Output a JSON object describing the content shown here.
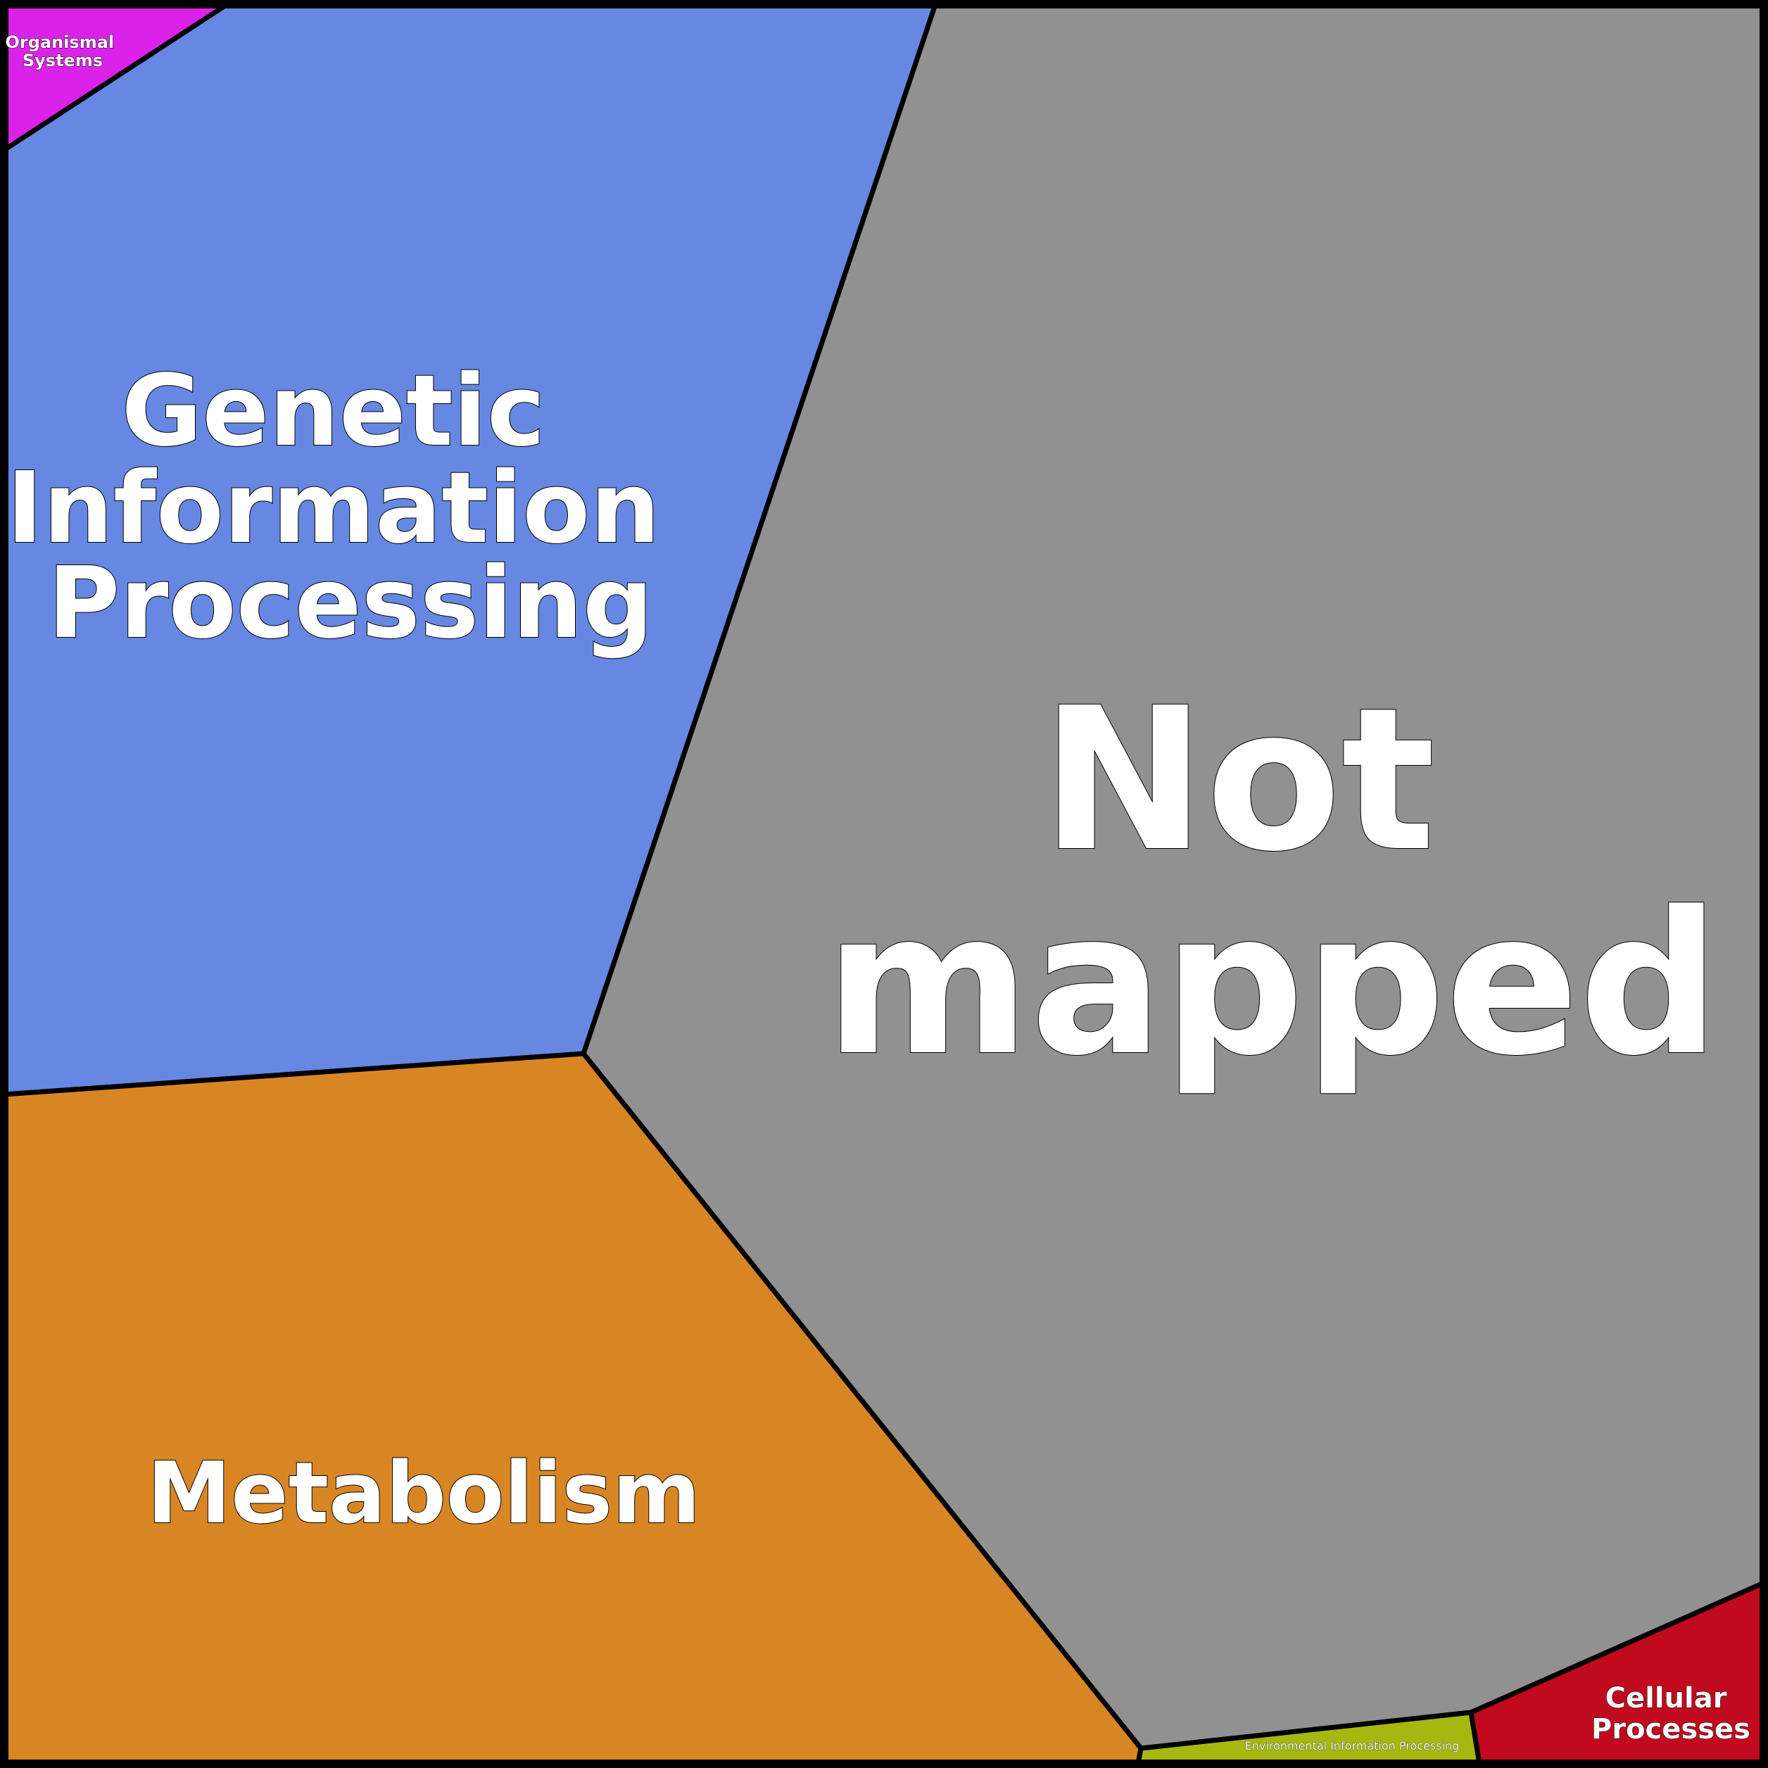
{
  "regions": {
    "not_mapped": {
      "label_lines": [
        "Not",
        "mapped"
      ],
      "color": "#929192"
    },
    "genetic_information_processing": {
      "label_lines": [
        "Genetic",
        "Information",
        "Processing"
      ],
      "color": "#6688e2"
    },
    "metabolism": {
      "label_lines": [
        "Metabolism"
      ],
      "color": "#d88624"
    },
    "organismal_systems": {
      "label_lines": [
        "Organismal",
        "Systems"
      ],
      "color": "#db22e8"
    },
    "cellular_processes": {
      "label_lines": [
        "Cellular",
        "Processes"
      ],
      "color": "#c20a1e"
    },
    "environmental_information_processing": {
      "label_lines": [
        "Environmental Information Processing"
      ],
      "color": "#a6b80f"
    }
  }
}
